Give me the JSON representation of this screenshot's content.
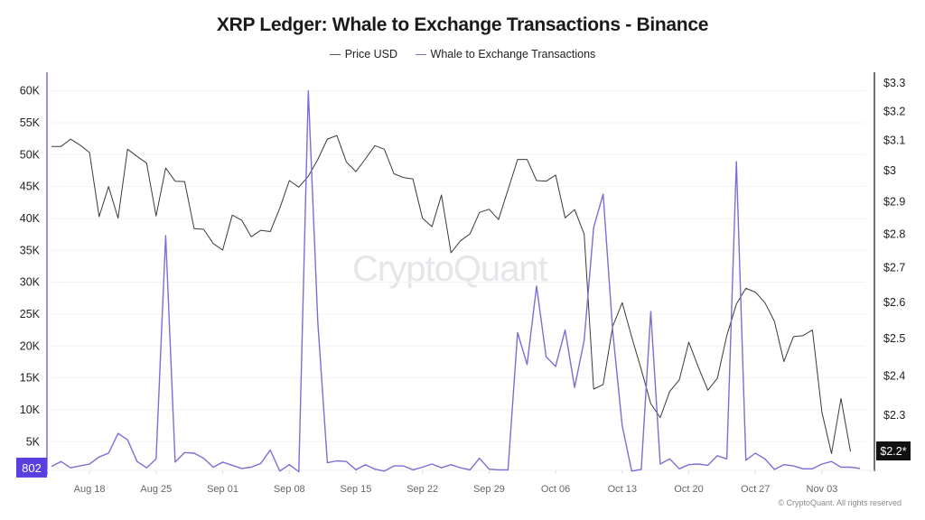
{
  "chart_data": {
    "type": "line",
    "title": "XRP Ledger: Whale to Exchange Transactions - Binance",
    "watermark": "CryptoQuant",
    "footer": "© CryptoQuant. All rights reserved",
    "legend_position": "top-center",
    "grid": true,
    "x": [
      "Aug 14",
      "Aug 15",
      "Aug 16",
      "Aug 17",
      "Aug 18",
      "Aug 19",
      "Aug 20",
      "Aug 21",
      "Aug 22",
      "Aug 23",
      "Aug 24",
      "Aug 25",
      "Aug 26",
      "Aug 27",
      "Aug 28",
      "Aug 29",
      "Aug 30",
      "Aug 31",
      "Sep 01",
      "Sep 02",
      "Sep 03",
      "Sep 04",
      "Sep 05",
      "Sep 06",
      "Sep 07",
      "Sep 08",
      "Sep 09",
      "Sep 10",
      "Sep 11",
      "Sep 12",
      "Sep 13",
      "Sep 14",
      "Sep 15",
      "Sep 16",
      "Sep 17",
      "Sep 18",
      "Sep 19",
      "Sep 20",
      "Sep 21",
      "Sep 22",
      "Sep 23",
      "Sep 24",
      "Sep 25",
      "Sep 26",
      "Sep 27",
      "Sep 28",
      "Sep 29",
      "Sep 30",
      "Oct 01",
      "Oct 02",
      "Oct 03",
      "Oct 04",
      "Oct 05",
      "Oct 06",
      "Oct 07",
      "Oct 08",
      "Oct 09",
      "Oct 10",
      "Oct 11",
      "Oct 12",
      "Oct 13",
      "Oct 14",
      "Oct 15",
      "Oct 16",
      "Oct 17",
      "Oct 18",
      "Oct 19",
      "Oct 20",
      "Oct 21",
      "Oct 22",
      "Oct 23",
      "Oct 24",
      "Oct 25",
      "Oct 26",
      "Oct 27",
      "Oct 28",
      "Oct 29",
      "Oct 30",
      "Oct 31",
      "Nov 01",
      "Nov 02",
      "Nov 03",
      "Nov 04",
      "Nov 05",
      "Nov 06",
      "Nov 07"
    ],
    "x_ticks": [
      "Aug 18",
      "Aug 25",
      "Sep 01",
      "Sep 08",
      "Sep 15",
      "Sep 22",
      "Sep 29",
      "Oct 06",
      "Oct 13",
      "Oct 20",
      "Oct 27",
      "Nov 03"
    ],
    "y_left": {
      "range": [
        0,
        60000
      ],
      "ticks": [
        5000,
        10000,
        15000,
        20000,
        25000,
        30000,
        35000,
        40000,
        45000,
        50000,
        55000,
        60000
      ],
      "tick_labels": [
        "5K",
        "10K",
        "15K",
        "20K",
        "25K",
        "30K",
        "35K",
        "40K",
        "45K",
        "50K",
        "55K",
        "60K"
      ],
      "current_label": "802",
      "color": "#7b6fd6"
    },
    "y_right": {
      "scale": "log",
      "range": [
        2.2,
        3.3
      ],
      "ticks": [
        2.3,
        2.4,
        2.5,
        2.6,
        2.7,
        2.8,
        2.9,
        3.0,
        3.1,
        3.2,
        3.3
      ],
      "tick_labels": [
        "$2.3",
        "$2.4",
        "$2.5",
        "$2.6",
        "$2.7",
        "$2.8",
        "$2.9",
        "$3",
        "$3.1",
        "$3.2",
        "$3.3"
      ],
      "current_label": "$2.2*",
      "color": "#222222"
    },
    "series": [
      {
        "name": "Price USD",
        "axis": "right",
        "color": "#3a3a3a",
        "values": [
          3.08,
          3.08,
          3.105,
          3.085,
          3.06,
          2.854,
          2.949,
          2.849,
          3.071,
          3.047,
          3.025,
          2.856,
          3.009,
          2.966,
          2.965,
          2.817,
          2.815,
          2.772,
          2.752,
          2.859,
          2.843,
          2.792,
          2.812,
          2.808,
          2.88,
          2.968,
          2.947,
          2.982,
          3.037,
          3.105,
          3.117,
          3.029,
          2.997,
          3.039,
          3.083,
          3.071,
          2.99,
          2.978,
          2.973,
          2.849,
          2.823,
          2.922,
          2.744,
          2.78,
          2.801,
          2.867,
          2.877,
          2.845,
          2.939,
          3.037,
          3.037,
          2.968,
          2.966,
          2.986,
          2.85,
          2.876,
          2.8,
          2.366,
          2.378,
          2.533,
          2.599,
          2.504,
          2.417,
          2.329,
          2.294,
          2.36,
          2.39,
          2.49,
          2.424,
          2.363,
          2.394,
          2.508,
          2.595,
          2.64,
          2.629,
          2.599,
          2.547,
          2.438,
          2.505,
          2.508,
          2.523,
          2.307,
          2.206,
          2.342,
          2.211,
          null
        ]
      },
      {
        "name": "Whale to Exchange Transactions",
        "axis": "left",
        "color": "#7b6fd6",
        "values": [
          1100,
          1900,
          900,
          1200,
          1500,
          2600,
          3200,
          6300,
          5300,
          1900,
          900,
          2300,
          37300,
          1800,
          3300,
          3200,
          2400,
          1000,
          1800,
          1300,
          800,
          1000,
          1600,
          3700,
          400,
          1400,
          300,
          60000,
          23800,
          1700,
          2000,
          1900,
          600,
          1400,
          700,
          400,
          1200,
          1200,
          600,
          1000,
          1500,
          900,
          1400,
          900,
          600,
          2400,
          700,
          600,
          600,
          22100,
          17100,
          29400,
          18300,
          16800,
          22500,
          13500,
          20900,
          38600,
          43800,
          22300,
          7500,
          400,
          650,
          25400,
          1500,
          2300,
          750,
          1400,
          1500,
          1300,
          2800,
          2300,
          48900,
          2100,
          3200,
          2300,
          650,
          1400,
          1200,
          750,
          750,
          1500,
          1900,
          1000,
          1000,
          802
        ]
      }
    ]
  }
}
